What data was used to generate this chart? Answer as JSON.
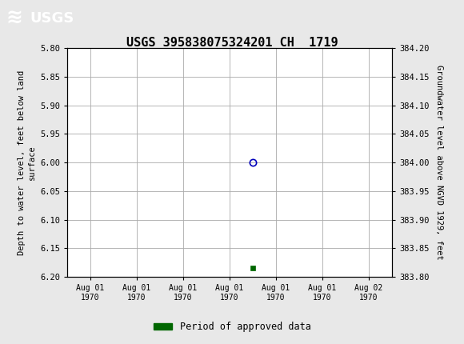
{
  "title": "USGS 395838075324201 CH  1719",
  "ylabel_left": "Depth to water level, feet below land\nsurface",
  "ylabel_right": "Groundwater level above NGVD 1929, feet",
  "ylim_left": [
    6.2,
    5.8
  ],
  "ylim_right": [
    383.8,
    384.2
  ],
  "yticks_left": [
    5.8,
    5.85,
    5.9,
    5.95,
    6.0,
    6.05,
    6.1,
    6.15,
    6.2
  ],
  "yticks_right": [
    384.2,
    384.15,
    384.1,
    384.05,
    384.0,
    383.95,
    383.9,
    383.85,
    383.8
  ],
  "data_point_x": 3.5,
  "data_point_y": 6.0,
  "data_point_color": "#0000bb",
  "approved_marker_x": 3.5,
  "approved_marker_y": 6.185,
  "approved_marker_color": "#006600",
  "x_tick_labels": [
    "Aug 01\n1970",
    "Aug 01\n1970",
    "Aug 01\n1970",
    "Aug 01\n1970",
    "Aug 01\n1970",
    "Aug 01\n1970",
    "Aug 02\n1970"
  ],
  "x_tick_positions": [
    0,
    1,
    2,
    3,
    4,
    5,
    6
  ],
  "xlim": [
    -0.5,
    6.5
  ],
  "header_color": "#1a6b3a",
  "bg_color": "#e8e8e8",
  "plot_bg_color": "#ffffff",
  "grid_color": "#aaaaaa",
  "title_fontsize": 11,
  "legend_label": "Period of approved data",
  "legend_color": "#006600"
}
